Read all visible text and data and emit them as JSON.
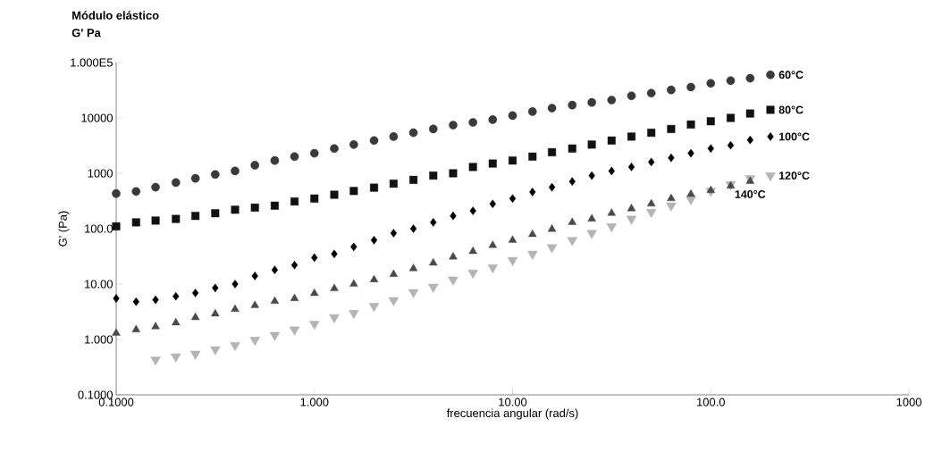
{
  "chart_data": {
    "type": "scatter",
    "title": "Módulo elástico",
    "subtitle": "G' Pa",
    "xlabel": "frecuencia angular (rad/s)",
    "ylabel": "G' (Pa)",
    "log": "xy",
    "grid": false,
    "xlim": [
      0.1,
      1000
    ],
    "ylim": [
      0.1,
      100000
    ],
    "xticks": [
      {
        "value": 0.1,
        "label": "0.1000"
      },
      {
        "value": 1,
        "label": "1.000"
      },
      {
        "value": 10,
        "label": "10.00"
      },
      {
        "value": 100,
        "label": "100.0"
      },
      {
        "value": 1000,
        "label": "1000"
      }
    ],
    "yticks": [
      {
        "value": 0.1,
        "label": "0.1000"
      },
      {
        "value": 1,
        "label": "1.000"
      },
      {
        "value": 10,
        "label": "10.00"
      },
      {
        "value": 100,
        "label": "100.0"
      },
      1000,
      10000,
      {
        "value": 100000,
        "label": "1.000E5"
      }
    ],
    "x": [
      0.1,
      0.126,
      0.158,
      0.2,
      0.251,
      0.316,
      0.398,
      0.501,
      0.631,
      0.794,
      1,
      1.26,
      1.58,
      2,
      2.51,
      3.16,
      3.98,
      5.01,
      6.31,
      7.94,
      10,
      12.6,
      15.8,
      20,
      25.1,
      31.6,
      39.8,
      50.1,
      63.1,
      79.4,
      100,
      126,
      158,
      200
    ],
    "series": [
      {
        "name": "60°C",
        "color": "#3a3a3a",
        "marker": "circle",
        "values": [
          430,
          470,
          560,
          680,
          810,
          950,
          1100,
          1400,
          1700,
          2000,
          2300,
          2800,
          3300,
          3900,
          4600,
          5400,
          6300,
          7400,
          8300,
          9300,
          11000,
          13000,
          15000,
          17000,
          19000,
          21000,
          25000,
          28000,
          32000,
          36000,
          42000,
          47000,
          52000,
          60000
        ]
      },
      {
        "name": "80°C",
        "color": "#111111",
        "marker": "square",
        "values": [
          110,
          130,
          140,
          150,
          170,
          190,
          220,
          240,
          260,
          310,
          350,
          410,
          480,
          550,
          650,
          760,
          910,
          1000,
          1300,
          1500,
          1700,
          2000,
          2400,
          2800,
          3300,
          3900,
          4600,
          5400,
          6300,
          7600,
          8700,
          10000,
          12000,
          14000
        ]
      },
      {
        "name": "100°C",
        "color": "#000000",
        "marker": "diamond",
        "values": [
          5.5,
          4.8,
          5.2,
          6.0,
          6.9,
          8.5,
          10,
          14,
          18,
          22,
          30,
          35,
          47,
          62,
          83,
          100,
          130,
          170,
          210,
          280,
          350,
          460,
          560,
          710,
          910,
          1100,
          1300,
          1600,
          1900,
          2300,
          2800,
          3200,
          4000,
          4600
        ]
      },
      {
        "name": "120°C",
        "color": "#b4b4b4",
        "marker": "triangle-down",
        "values": [
          null,
          null,
          0.43,
          0.49,
          0.55,
          0.66,
          0.79,
          0.98,
          1.2,
          1.5,
          1.9,
          2.5,
          3.0,
          4.0,
          5.1,
          7.1,
          8.9,
          12,
          16,
          20,
          27,
          35,
          46,
          62,
          83,
          110,
          150,
          200,
          260,
          340,
          480,
          630,
          810,
          910
        ]
      },
      {
        "name": "140°C",
        "color": "#4a4a4a",
        "marker": "triangle",
        "values": [
          1.3,
          1.5,
          1.7,
          2.0,
          2.5,
          2.9,
          3.5,
          4.1,
          4.9,
          5.5,
          6.8,
          8.3,
          10,
          12,
          15,
          19,
          24,
          31,
          39,
          50,
          62,
          79,
          98,
          130,
          150,
          190,
          230,
          280,
          350,
          420,
          490,
          590,
          720,
          null
        ]
      }
    ]
  }
}
